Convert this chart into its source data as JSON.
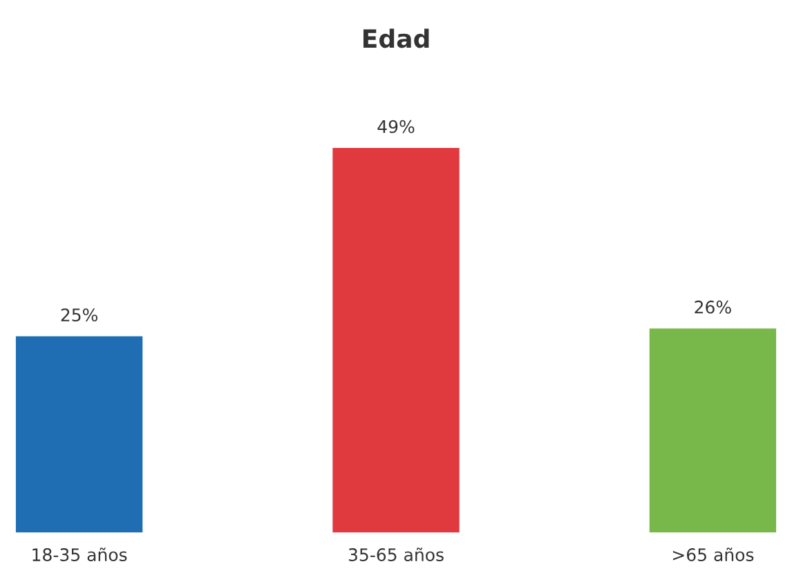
{
  "chart_data": {
    "type": "bar",
    "title": "Edad",
    "categories": [
      "18-35 años",
      "35-65 años",
      ">65 años"
    ],
    "values": [
      25,
      49,
      26
    ],
    "colors": [
      "#1f6db3",
      "#e0393e",
      "#78b84a"
    ],
    "value_labels": [
      "25%",
      "49%",
      "26%"
    ],
    "grid": false,
    "legend": false
  }
}
